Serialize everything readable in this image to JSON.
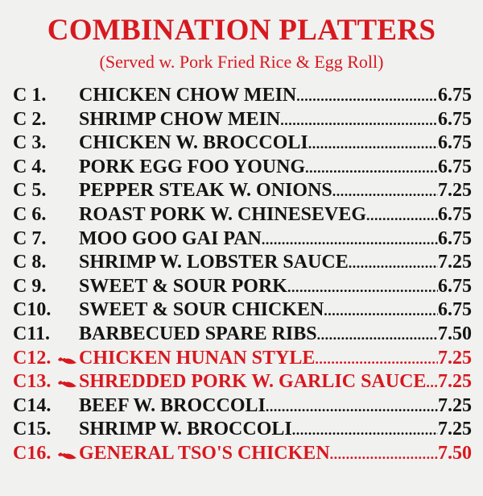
{
  "title": "COMBINATION PLATTERS",
  "subtitle": "(Served w. Pork Fried Rice & Egg Roll)",
  "colors": {
    "accent": "#d7191f",
    "text": "#141414",
    "background": "#f1f1f0"
  },
  "items": [
    {
      "code": "C 1.",
      "name": "CHICKEN CHOW MEIN",
      "price": "6.75",
      "hot": false
    },
    {
      "code": "C 2.",
      "name": "SHRIMP CHOW MEIN",
      "price": "6.75",
      "hot": false
    },
    {
      "code": "C 3.",
      "name": "CHICKEN W. BROCCOLI",
      "price": "6.75",
      "hot": false
    },
    {
      "code": "C 4.",
      "name": "PORK EGG FOO YOUNG",
      "price": "6.75",
      "hot": false
    },
    {
      "code": "C 5.",
      "name": "PEPPER STEAK W. ONIONS",
      "price": "7.25",
      "hot": false
    },
    {
      "code": "C 6.",
      "name": "ROAST PORK W. CHINESEVEG",
      "price": "6.75",
      "hot": false
    },
    {
      "code": "C 7.",
      "name": "MOO GOO GAI PAN",
      "price": "6.75",
      "hot": false
    },
    {
      "code": "C 8.",
      "name": "SHRIMP W. LOBSTER SAUCE",
      "price": "7.25",
      "hot": false
    },
    {
      "code": "C 9.",
      "name": "SWEET & SOUR PORK",
      "price": "6.75",
      "hot": false
    },
    {
      "code": "C10.",
      "name": "SWEET & SOUR CHICKEN",
      "price": "6.75",
      "hot": false
    },
    {
      "code": "C11.",
      "name": "BARBECUED SPARE RIBS",
      "price": "7.50",
      "hot": false
    },
    {
      "code": "C12.",
      "name": "CHICKEN HUNAN STYLE",
      "price": "7.25",
      "hot": true,
      "icon": "hot-pepper-icon"
    },
    {
      "code": "C13.",
      "name": "SHREDDED PORK W. GARLIC SAUCE",
      "price": "7.25",
      "hot": true,
      "icon": "hot-pepper-icon"
    },
    {
      "code": "C14.",
      "name": "BEEF  W. BROCCOLI",
      "price": "7.25",
      "hot": false
    },
    {
      "code": "C15.",
      "name": "SHRIMP W. BROCCOLI",
      "price": "7.25",
      "hot": false
    },
    {
      "code": "C16.",
      "name": "GENERAL TSO'S CHICKEN",
      "price": "7.50",
      "hot": true,
      "icon": "hot-pepper-icon"
    }
  ]
}
